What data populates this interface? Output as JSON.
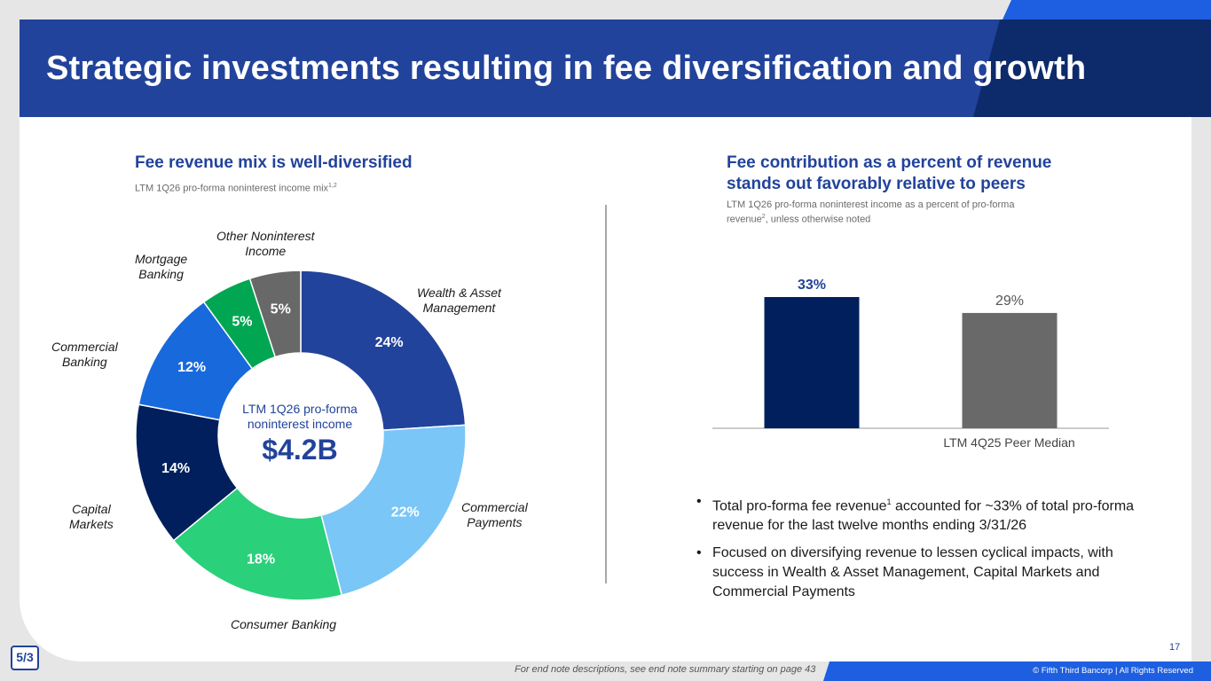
{
  "title": "Strategic investments resulting in fee diversification and growth",
  "colors": {
    "brand_blue": "#22439b",
    "navy": "#001f5c",
    "accent_blue": "#1d5fe0",
    "gray_bar": "#696969"
  },
  "left": {
    "title": "Fee revenue mix is well-diversified",
    "subtitle": "LTM 1Q26 pro-forma noninterest income mix",
    "subtitle_sup": "1,2",
    "center_label": "LTM 1Q26 pro-forma noninterest income",
    "center_value": "$4.2B"
  },
  "right": {
    "title_line1": "Fee contribution as a percent of revenue",
    "title_line2": "stands out favorably relative to peers",
    "subtitle_line1": "LTM 1Q26 pro-forma noninterest income as a percent of pro-forma",
    "subtitle_line2_pre": "revenue",
    "subtitle_line2_sup": "2",
    "subtitle_line2_post": ", unless otherwise noted"
  },
  "bullets": [
    {
      "pre": "Total pro-forma fee revenue",
      "sup": "1",
      "post": " accounted for ~33% of total pro-forma revenue for the last twelve months ending 3/31/26"
    },
    {
      "pre": "Focused on diversifying revenue to lessen cyclical impacts, with success in Wealth & Asset Management, Capital Markets and Commercial Payments",
      "sup": "",
      "post": ""
    }
  ],
  "bullet_glyph": "•",
  "page_number": "17",
  "logo_text": "5/3",
  "footnote": "For end note descriptions, see end note summary starting on page 43",
  "copyright": "© Fifth Third Bancorp | All Rights Reserved",
  "chart_data": [
    {
      "type": "pie",
      "donut": true,
      "categories": [
        "Wealth & Asset Management",
        "Commercial Payments",
        "Consumer Banking",
        "Capital Markets",
        "Commercial Banking",
        "Mortgage Banking",
        "Other Noninterest Income"
      ],
      "values": [
        24,
        22,
        18,
        14,
        12,
        5,
        5
      ],
      "data_labels": [
        "24%",
        "22%",
        "18%",
        "14%",
        "12%",
        "5%",
        "5%"
      ],
      "colors": [
        "#22439b",
        "#7ac6f7",
        "#2ad07a",
        "#001f5c",
        "#1769dc",
        "#00a651",
        "#686868"
      ],
      "label_colors": [
        "#ffffff",
        "#ffffff",
        "#ffffff",
        "#ffffff",
        "#ffffff",
        "#ffffff",
        "#ffffff"
      ],
      "start": "top, clockwise"
    },
    {
      "type": "bar",
      "categories": [
        "",
        "LTM 4Q25 Peer Median"
      ],
      "values": [
        33,
        29
      ],
      "data_labels": [
        "33%",
        "29%"
      ],
      "colors": [
        "#001f5c",
        "#696969"
      ],
      "label_colors": [
        "#22439b",
        "#555555"
      ],
      "ylim": [
        0,
        40
      ]
    }
  ]
}
